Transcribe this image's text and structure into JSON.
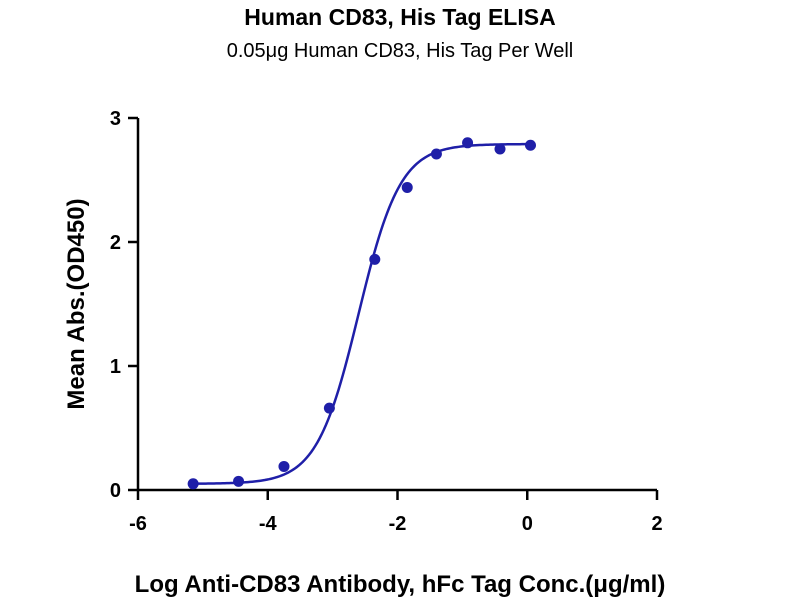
{
  "chart_data": {
    "type": "scatter",
    "title": "Human CD83, His Tag ELISA",
    "subtitle": "0.05μg Human CD83, His Tag Per Well",
    "xlabel": "Log Anti-CD83 Antibody, hFc Tag Conc.(μg/ml)",
    "ylabel": "Mean Abs.(OD450)",
    "xlim": [
      -6,
      2
    ],
    "ylim": [
      0,
      3
    ],
    "x_ticks": [
      -6,
      -4,
      -2,
      0,
      2
    ],
    "y_ticks": [
      0,
      1,
      2,
      3
    ],
    "grid": false,
    "series": [
      {
        "points": [
          {
            "x": -5.15,
            "y": 0.05
          },
          {
            "x": -4.45,
            "y": 0.07
          },
          {
            "x": -3.75,
            "y": 0.19
          },
          {
            "x": -3.05,
            "y": 0.66
          },
          {
            "x": -2.35,
            "y": 1.86
          },
          {
            "x": -1.85,
            "y": 2.44
          },
          {
            "x": -1.4,
            "y": 2.71
          },
          {
            "x": -0.92,
            "y": 2.8
          },
          {
            "x": -0.42,
            "y": 2.75
          },
          {
            "x": 0.05,
            "y": 2.78
          }
        ],
        "fit": {
          "model": "4PL",
          "bottom": 0.05,
          "top": 2.79,
          "logEC50": -2.6,
          "hill": 1.35
        }
      }
    ],
    "colors": {
      "series": "#1f1fa8",
      "axis": "#000000"
    }
  }
}
